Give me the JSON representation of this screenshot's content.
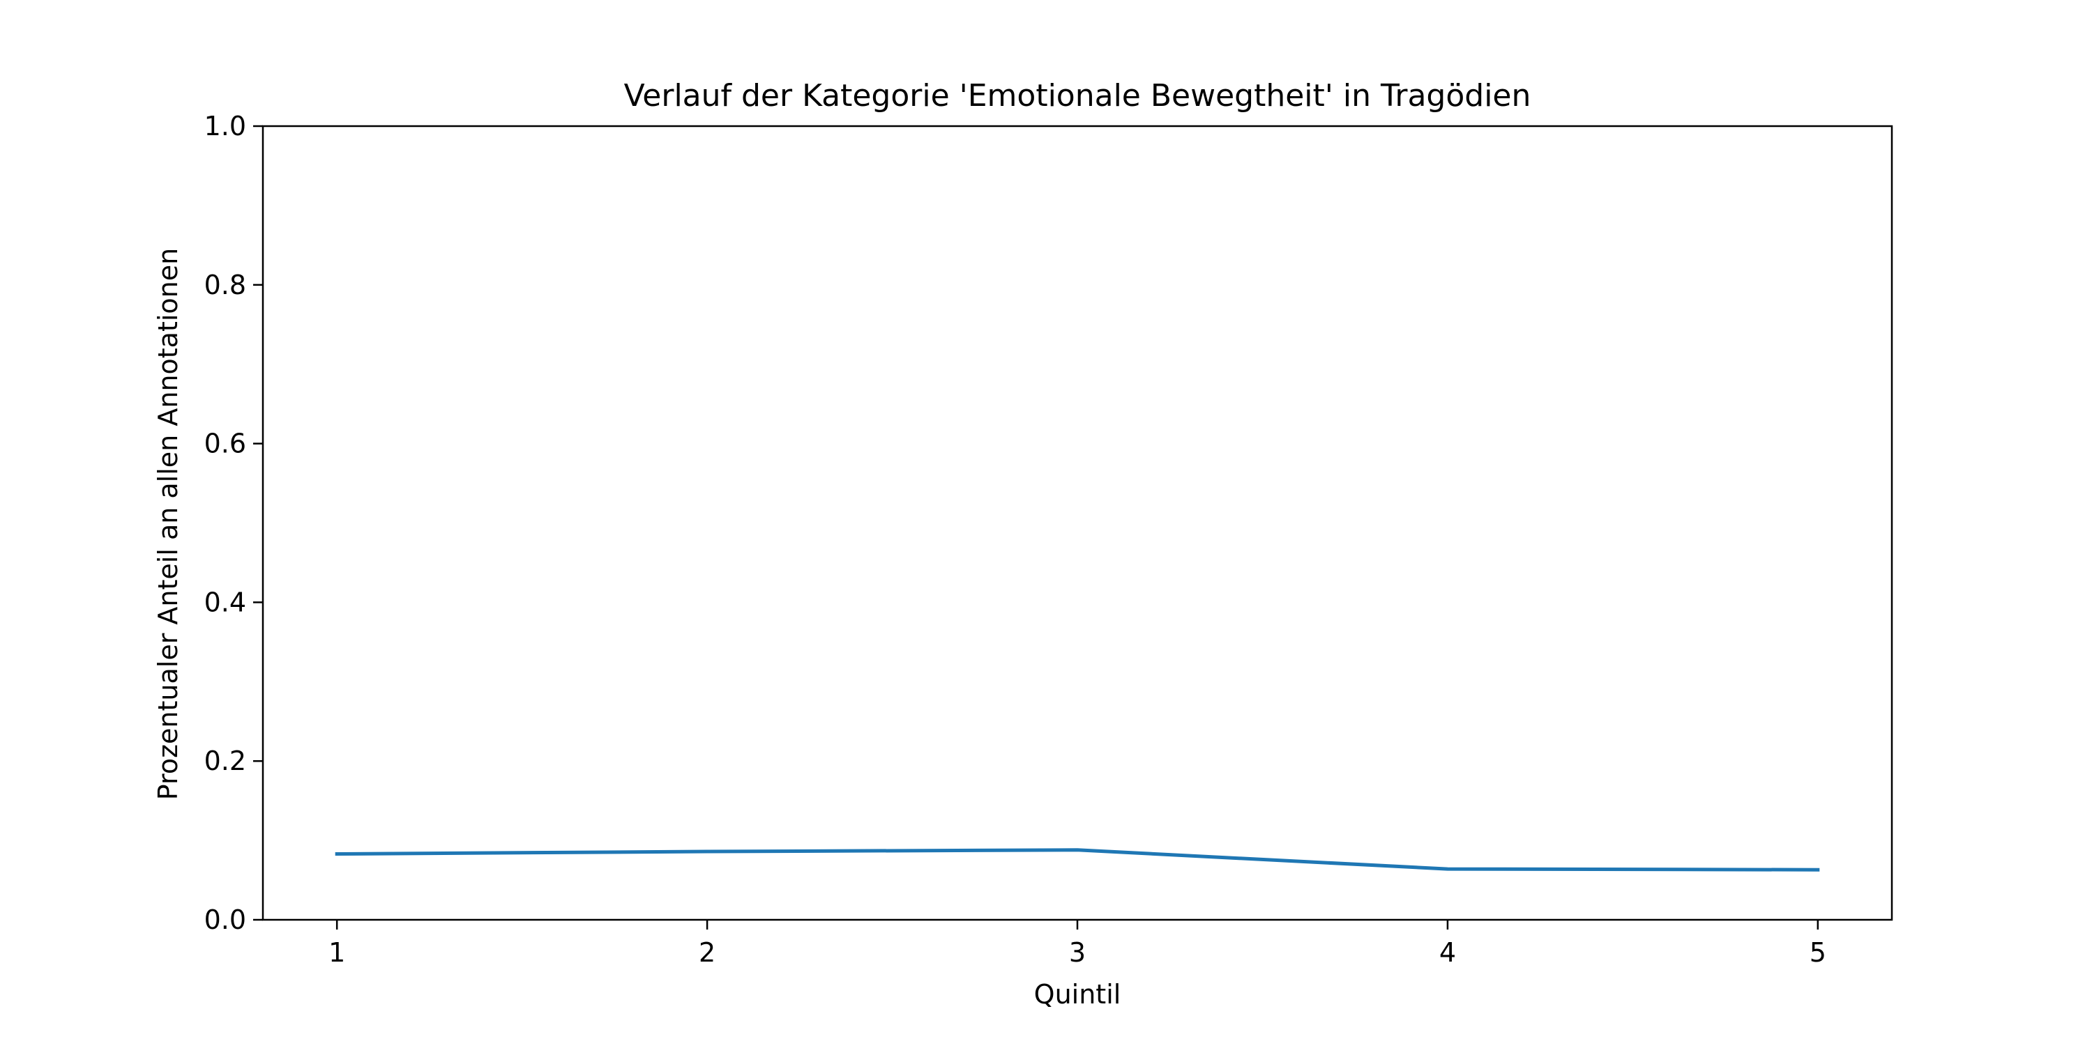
{
  "chart_data": {
    "type": "line",
    "title": "Verlauf der Kategorie 'Emotionale Bewegtheit' in Tragödien",
    "xlabel": "Quintil",
    "ylabel": "Prozentualer Anteil an allen Annotationen",
    "x": [
      1,
      2,
      3,
      4,
      5
    ],
    "x_tick_labels": [
      "1",
      "2",
      "3",
      "4",
      "5"
    ],
    "y_ticks": [
      0.0,
      0.2,
      0.4,
      0.6,
      0.8,
      1.0
    ],
    "y_tick_labels": [
      "0.0",
      "0.2",
      "0.4",
      "0.6",
      "0.8",
      "1.0"
    ],
    "xlim": [
      0.8,
      5.2
    ],
    "ylim": [
      0.0,
      1.0
    ],
    "grid": false,
    "series": [
      {
        "values": [
          0.083,
          0.086,
          0.088,
          0.064,
          0.063
        ],
        "color": "#1f77b4"
      }
    ]
  }
}
